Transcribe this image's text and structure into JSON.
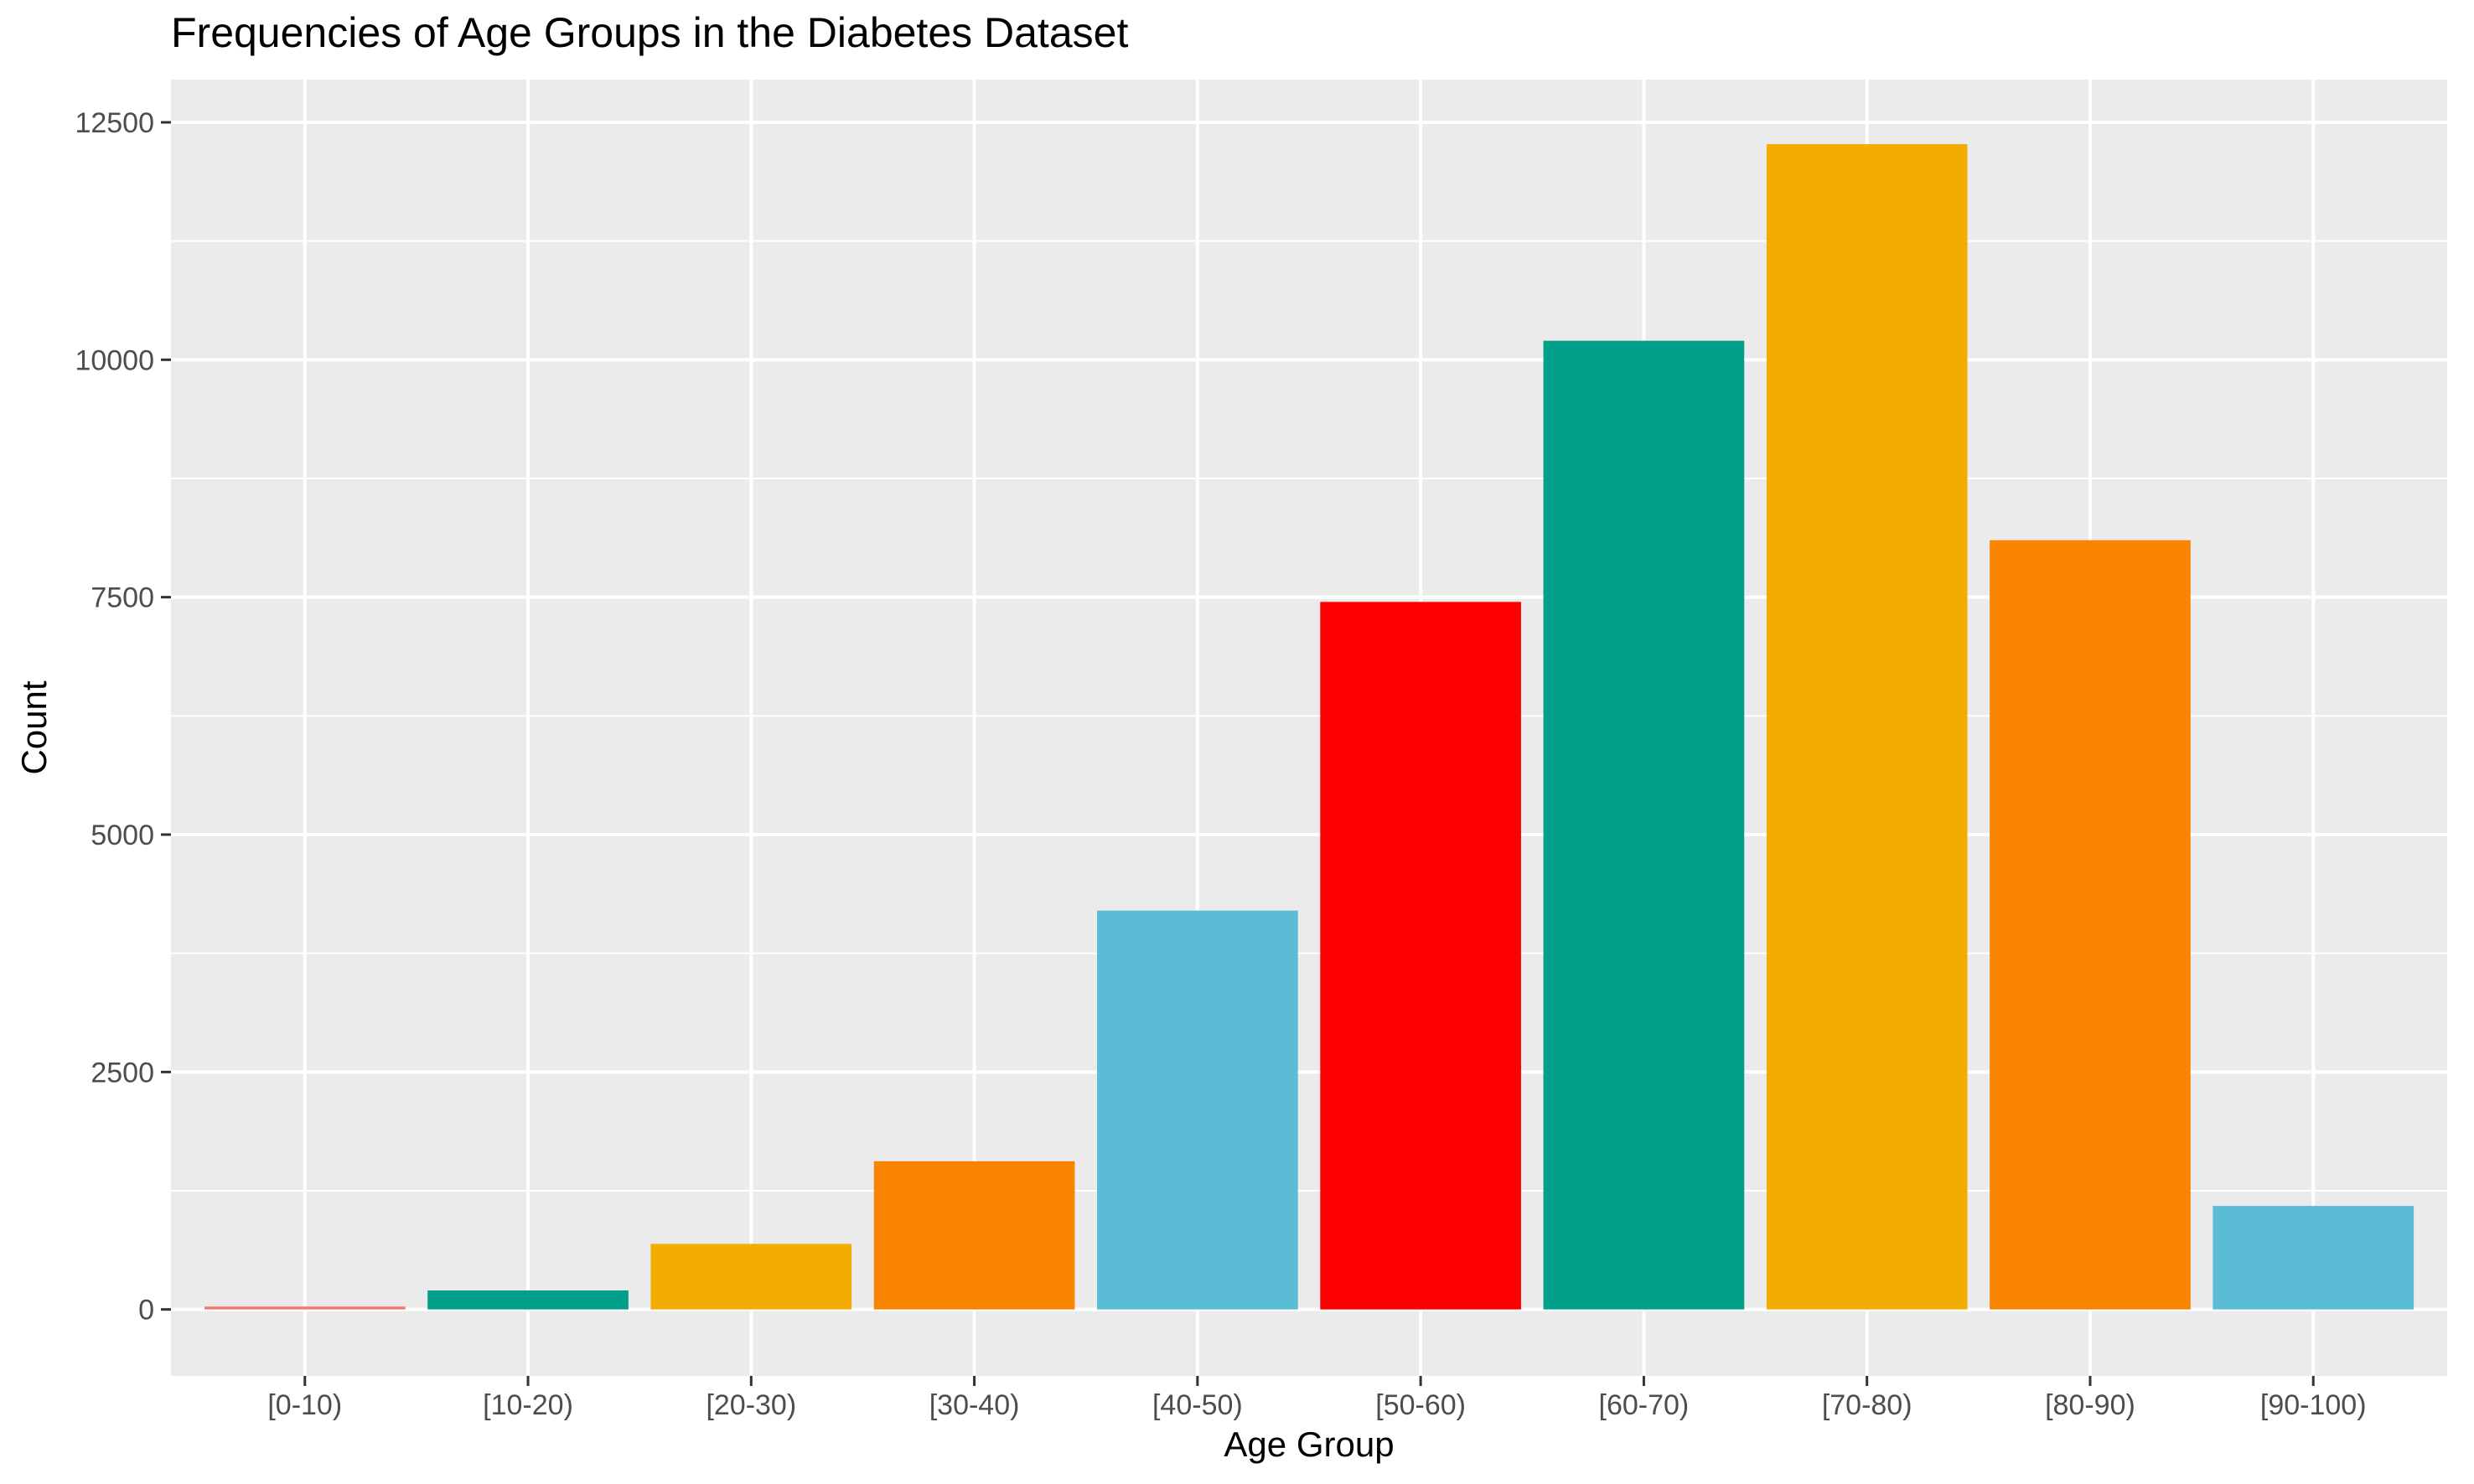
{
  "chart_data": {
    "type": "bar",
    "title": "Frequencies of Age Groups in the Diabetes Dataset",
    "xlabel": "Age Group",
    "ylabel": "Count",
    "categories": [
      "[0-10)",
      "[10-20)",
      "[20-30)",
      "[30-40)",
      "[40-50)",
      "[50-60)",
      "[60-70)",
      "[70-80)",
      "[80-90)",
      "[90-100)"
    ],
    "values": [
      30,
      200,
      690,
      1560,
      4200,
      7450,
      10200,
      12270,
      8100,
      1090
    ],
    "colors": [
      "#F8766D",
      "#00A08A",
      "#F2AD00",
      "#F98400",
      "#5BBCD6",
      "#FF0000",
      "#00A08A",
      "#F2AD00",
      "#F98400",
      "#5BBCD6"
    ],
    "ylim": [
      -700,
      12950
    ],
    "yticks": [
      0,
      2500,
      5000,
      7500,
      10000,
      12500
    ],
    "ytick_labels": [
      "0",
      "2500",
      "5000",
      "7500",
      "10000",
      "12500"
    ],
    "grid": true,
    "legend": "none",
    "panel_background": "#EBEBEB",
    "grid_color": "#FFFFFF"
  }
}
